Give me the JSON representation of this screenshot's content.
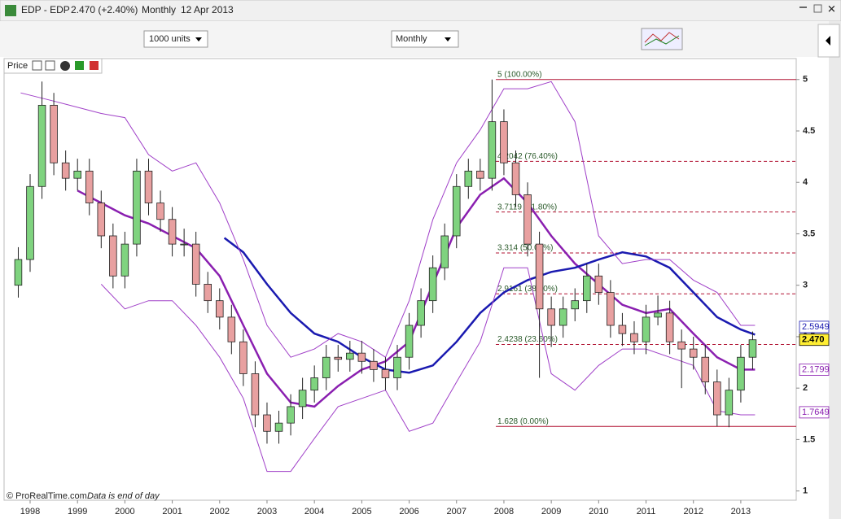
{
  "header": {
    "symbol": "EDP - EDP",
    "price": "2.470 (+2.40%)",
    "period": "Monthly",
    "date": "12 Apr 2013"
  },
  "toolbar": {
    "units": "1000 units",
    "timeframe": "Monthly"
  },
  "panel_label": "Price",
  "footer": {
    "copyright": "© ProRealTime.com",
    "note": "Data is end of day"
  },
  "chart_data": {
    "type": "candlestick",
    "xlim": [
      1997.45,
      2014.17
    ],
    "xticks": [
      1998,
      1999,
      2000,
      2001,
      2002,
      2003,
      2004,
      2005,
      2006,
      2007,
      2008,
      2009,
      2010,
      2011,
      2012,
      2013
    ],
    "ylim": [
      0.91,
      5.18
    ],
    "yticks": [
      1,
      1.5,
      2,
      2.5,
      3,
      3.5,
      4,
      4.5,
      5
    ],
    "up_color": "#7fd37f",
    "down_color": "#e8a0a0",
    "x": [
      1997.75,
      1998,
      1998.25,
      1998.5,
      1998.75,
      1999,
      1999.25,
      1999.5,
      1999.75,
      2000,
      2000.25,
      2000.5,
      2000.75,
      2001,
      2001.25,
      2001.5,
      2001.75,
      2002,
      2002.25,
      2002.5,
      2002.75,
      2003,
      2003.25,
      2003.5,
      2003.75,
      2004,
      2004.25,
      2004.5,
      2004.75,
      2005,
      2005.25,
      2005.5,
      2005.75,
      2006,
      2006.25,
      2006.5,
      2006.75,
      2007,
      2007.25,
      2007.5,
      2007.75,
      2008,
      2008.25,
      2008.5,
      2008.75,
      2009,
      2009.25,
      2009.5,
      2009.75,
      2010,
      2010.25,
      2010.5,
      2010.75,
      2011,
      2011.25,
      2011.5,
      2011.75,
      2012,
      2012.25,
      2012.5,
      2012.75,
      2013,
      2013.25
    ],
    "open": [
      3.0,
      3.25,
      3.96,
      4.75,
      4.19,
      4.04,
      4.11,
      3.8,
      3.48,
      3.09,
      3.4,
      4.11,
      3.8,
      3.64,
      3.4,
      3.4,
      3.01,
      2.85,
      2.69,
      2.45,
      2.14,
      1.74,
      1.58,
      1.66,
      1.82,
      1.98,
      2.1,
      2.3,
      2.28,
      2.34,
      2.26,
      2.18,
      2.1,
      2.3,
      2.61,
      2.85,
      3.17,
      3.48,
      3.96,
      4.11,
      4.04,
      4.59,
      4.19,
      3.88,
      3.4,
      2.77,
      2.61,
      2.77,
      2.85,
      3.09,
      2.93,
      2.61,
      2.53,
      2.45,
      2.69,
      2.73,
      2.45,
      2.38,
      2.3,
      2.06,
      1.74,
      1.98,
      2.3
    ],
    "high": [
      3.37,
      4.08,
      4.98,
      4.87,
      4.31,
      4.23,
      4.23,
      3.92,
      3.6,
      3.52,
      4.23,
      4.23,
      3.92,
      3.76,
      3.55,
      3.52,
      3.13,
      2.97,
      2.81,
      2.57,
      2.26,
      1.86,
      1.78,
      1.94,
      2.1,
      2.22,
      2.42,
      2.42,
      2.46,
      2.46,
      2.38,
      2.3,
      2.42,
      2.73,
      2.97,
      3.29,
      3.6,
      4.08,
      4.23,
      4.23,
      5.0,
      4.71,
      4.31,
      4.0,
      3.52,
      2.89,
      2.89,
      2.97,
      3.21,
      3.21,
      3.05,
      2.73,
      2.65,
      2.81,
      2.9,
      2.85,
      2.57,
      2.5,
      2.42,
      2.18,
      2.1,
      2.42,
      2.55
    ],
    "low": [
      2.88,
      3.13,
      3.84,
      4.07,
      3.92,
      3.92,
      3.68,
      3.36,
      2.97,
      2.97,
      3.28,
      3.68,
      3.52,
      3.28,
      3.28,
      2.89,
      2.73,
      2.57,
      2.33,
      2.02,
      1.62,
      1.46,
      1.46,
      1.54,
      1.7,
      1.86,
      1.98,
      2.16,
      2.16,
      2.14,
      2.06,
      1.98,
      1.98,
      2.18,
      2.49,
      2.73,
      3.05,
      3.36,
      3.84,
      3.92,
      3.92,
      4.07,
      3.76,
      3.28,
      2.1,
      2.4,
      2.49,
      2.65,
      2.73,
      2.81,
      2.49,
      2.41,
      2.33,
      2.33,
      2.61,
      2.33,
      2.0,
      2.18,
      1.94,
      1.628,
      1.62,
      1.86,
      2.18
    ],
    "close": [
      3.25,
      3.96,
      4.75,
      4.19,
      4.04,
      4.11,
      3.8,
      3.48,
      3.09,
      3.4,
      4.11,
      3.8,
      3.64,
      3.4,
      3.4,
      3.01,
      2.85,
      2.69,
      2.45,
      2.14,
      1.74,
      1.58,
      1.66,
      1.82,
      1.98,
      2.1,
      2.3,
      2.28,
      2.34,
      2.26,
      2.18,
      2.1,
      2.3,
      2.61,
      2.85,
      3.17,
      3.48,
      3.96,
      4.11,
      4.04,
      4.59,
      4.19,
      3.88,
      3.4,
      2.77,
      2.61,
      2.77,
      2.85,
      3.09,
      2.93,
      2.61,
      2.53,
      2.45,
      2.69,
      2.73,
      2.45,
      2.38,
      2.3,
      2.06,
      1.74,
      1.98,
      2.3,
      2.47
    ],
    "overlays": [
      {
        "color": "#8a1fb0",
        "width": 2.5,
        "x": [
          1999,
          1999.5,
          2000,
          2000.5,
          2001,
          2001.5,
          2002,
          2002.5,
          2003,
          2003.5,
          2004,
          2004.5,
          2005,
          2005.5,
          2006,
          2006.5,
          2007,
          2007.5,
          2008,
          2008.5,
          2009,
          2009.5,
          2010,
          2010.5,
          2011,
          2011.5,
          2012,
          2012.5,
          2013,
          2013.3
        ],
        "values": [
          3.92,
          3.8,
          3.68,
          3.6,
          3.48,
          3.36,
          3.09,
          2.61,
          2.14,
          1.86,
          1.82,
          2.02,
          2.18,
          2.26,
          2.45,
          3.01,
          3.56,
          3.88,
          4.04,
          3.8,
          3.48,
          3.21,
          3.01,
          2.81,
          2.73,
          2.77,
          2.53,
          2.3,
          2.18,
          2.18
        ]
      },
      {
        "color": "#1a1ab0",
        "width": 2.5,
        "x": [
          2002.1,
          2002.5,
          2003,
          2003.5,
          2004,
          2004.5,
          2005,
          2005.5,
          2006,
          2006.5,
          2007,
          2007.5,
          2008,
          2008.5,
          2009,
          2009.5,
          2010,
          2010.5,
          2011,
          2011.5,
          2012,
          2012.5,
          2013,
          2013.3
        ],
        "values": [
          3.46,
          3.32,
          3.01,
          2.73,
          2.53,
          2.45,
          2.3,
          2.18,
          2.15,
          2.22,
          2.45,
          2.73,
          2.93,
          3.05,
          3.13,
          3.17,
          3.25,
          3.32,
          3.28,
          3.17,
          2.93,
          2.69,
          2.57,
          2.52
        ]
      },
      {
        "color": "#a040c8",
        "width": 1,
        "x": [
          1997.8,
          1998.5,
          1999.5,
          2000,
          2000.5,
          2001,
          2001.5,
          2002,
          2002.5,
          2003,
          2003.5,
          2004,
          2004.5,
          2005,
          2005.5,
          2006,
          2006.5,
          2007,
          2007.5,
          2008,
          2008.5,
          2009,
          2009.5,
          2010,
          2010.5,
          2011,
          2011.5,
          2012,
          2012.5,
          2013,
          2013.3
        ],
        "values": [
          4.87,
          4.79,
          4.67,
          4.63,
          4.27,
          4.11,
          4.19,
          3.8,
          3.25,
          2.61,
          2.3,
          2.38,
          2.53,
          2.45,
          2.3,
          2.85,
          3.64,
          4.19,
          4.51,
          4.91,
          4.91,
          4.98,
          4.59,
          3.48,
          3.21,
          3.25,
          3.25,
          3.05,
          2.93,
          2.61,
          2.61
        ]
      },
      {
        "color": "#a040c8",
        "width": 1,
        "x": [
          1999.5,
          2000,
          2000.5,
          2001,
          2001.5,
          2002,
          2002.5,
          2003,
          2003.5,
          2004,
          2004.5,
          2005,
          2005.5,
          2006,
          2006.5,
          2007,
          2007.5,
          2008,
          2008.5,
          2009,
          2009.5,
          2010,
          2010.5,
          2011,
          2011.5,
          2012,
          2012.5,
          2013,
          2013.3
        ],
        "values": [
          3.01,
          2.77,
          2.85,
          2.85,
          2.61,
          2.3,
          1.9,
          1.19,
          1.19,
          1.51,
          1.82,
          1.9,
          1.98,
          1.58,
          1.66,
          2.06,
          2.45,
          3.17,
          3.17,
          2.14,
          1.98,
          2.22,
          2.38,
          2.38,
          2.3,
          2.22,
          1.78,
          1.74,
          1.74
        ]
      }
    ],
    "fib_from": 2007.83,
    "fib_levels": [
      {
        "value": 5,
        "label": "5 (100.00%)"
      },
      {
        "value": 4.2042,
        "label": "4.2042 (76.40%)"
      },
      {
        "value": 3.7119,
        "label": "3.7119 (61.80%)"
      },
      {
        "value": 3.314,
        "label": "3.314 (50.00%)"
      },
      {
        "value": 2.9161,
        "label": "2.9161 (38.20%)"
      },
      {
        "value": 2.4238,
        "label": "2.4238 (23.60%)"
      },
      {
        "value": 1.628,
        "label": "1.628 (0.00%)"
      }
    ],
    "fib_color": "#b01030",
    "value_markers": [
      {
        "value": 2.5949,
        "color": "#1a1ab0",
        "background": "#ffffff"
      },
      {
        "value": 2.47,
        "label": "2.470",
        "color": "#000000",
        "background": "#ffee33"
      },
      {
        "value": 2.1799,
        "color": "#8a1fb0",
        "background": "#ffffff"
      },
      {
        "value": 1.7649,
        "color": "#8a1fb0",
        "background": "#ffffff"
      }
    ]
  }
}
